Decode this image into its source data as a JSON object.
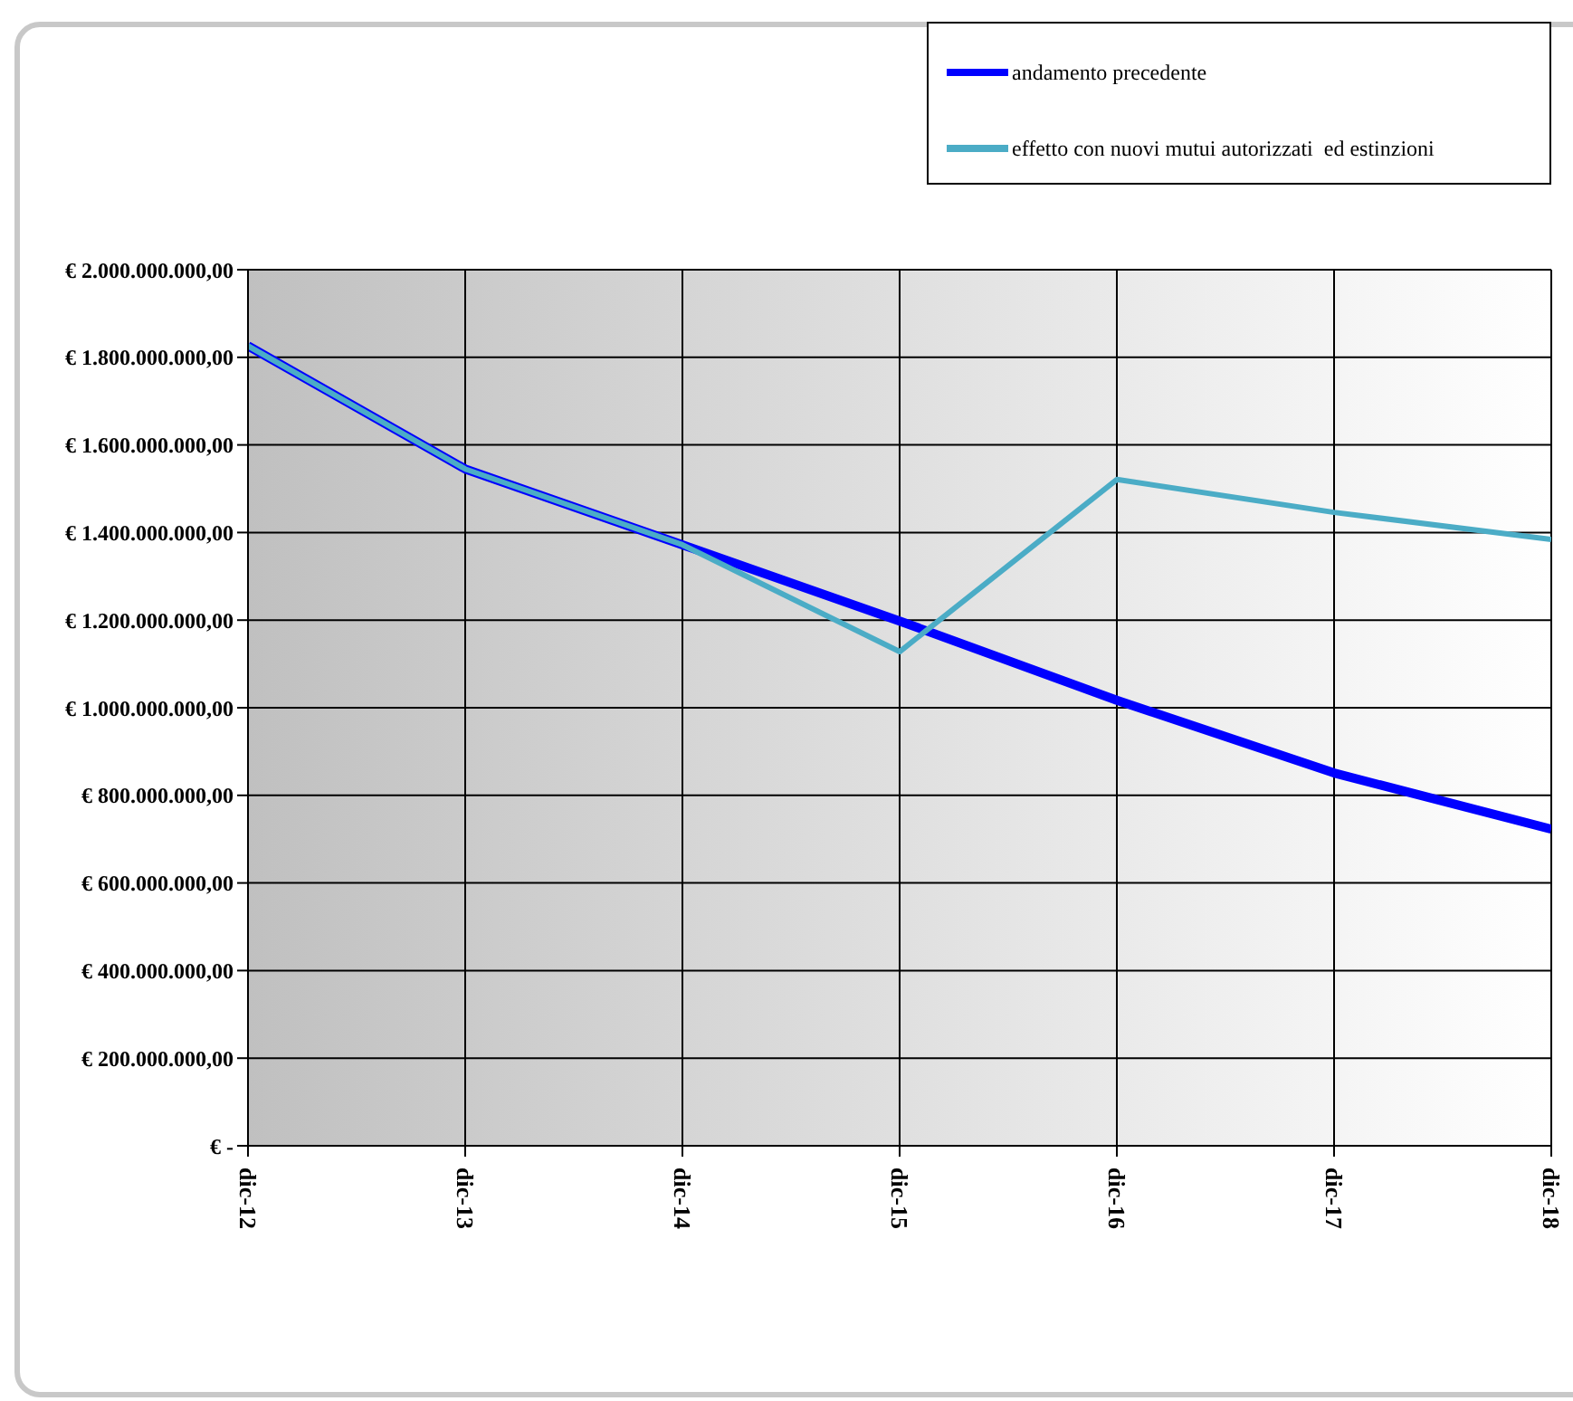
{
  "chart_data": {
    "type": "line",
    "categories": [
      "dic-12",
      "dic-13",
      "dic-14",
      "dic-15",
      "dic-16",
      "dic-17",
      "dic-18"
    ],
    "series": [
      {
        "name": "andamento precedente",
        "color": "#0000ff",
        "values": [
          1826000000,
          1545000000,
          1372000000,
          1198000000,
          1017000000,
          851000000,
          723000000
        ]
      },
      {
        "name": "effetto con nuovi mutui autorizzati  ed estinzioni",
        "color": "#4bacc6",
        "values": [
          1826000000,
          1545000000,
          1372000000,
          1128000000,
          1521000000,
          1446000000,
          1384000000
        ]
      }
    ],
    "ylim": [
      0,
      2000000000
    ],
    "yticks": [
      {
        "value": 0,
        "label": "€ -"
      },
      {
        "value": 200000000,
        "label": "€ 200.000.000,00"
      },
      {
        "value": 400000000,
        "label": "€ 400.000.000,00"
      },
      {
        "value": 600000000,
        "label": "€ 600.000.000,00"
      },
      {
        "value": 800000000,
        "label": "€ 800.000.000,00"
      },
      {
        "value": 1000000000,
        "label": "€ 1.000.000.000,00"
      },
      {
        "value": 1200000000,
        "label": "€ 1.200.000.000,00"
      },
      {
        "value": 1400000000,
        "label": "€ 1.400.000.000,00"
      },
      {
        "value": 1600000000,
        "label": "€ 1.600.000.000,00"
      },
      {
        "value": 1800000000,
        "label": "€ 1.800.000.000,00"
      },
      {
        "value": 2000000000,
        "label": "€ 2.000.000.000,00"
      }
    ],
    "grid": true,
    "legend": "top right",
    "marker": "none",
    "line_style": "solid"
  }
}
